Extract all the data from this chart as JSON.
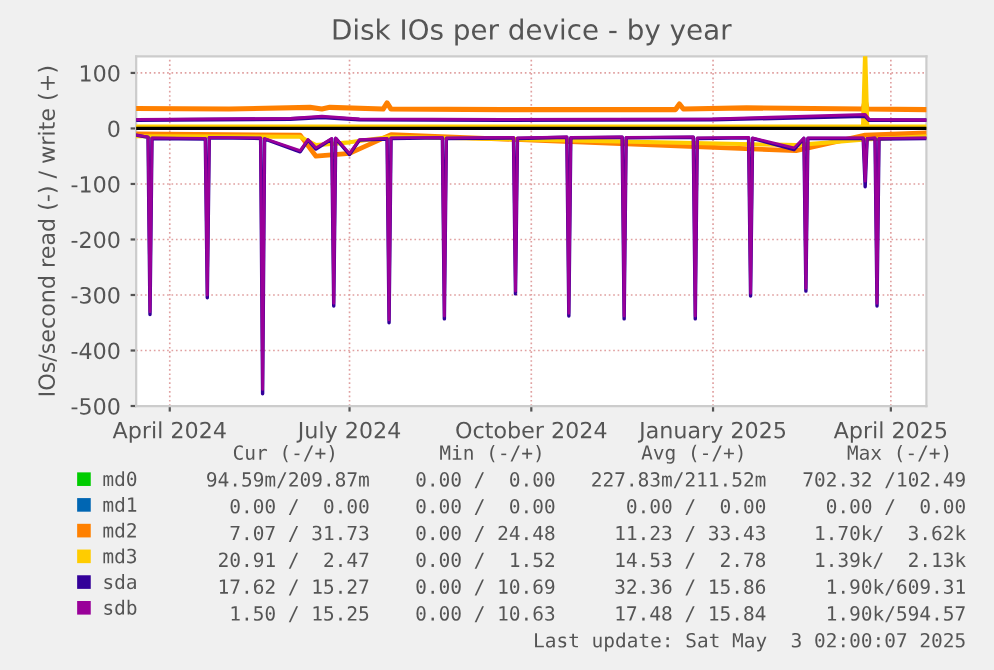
{
  "chart_data": {
    "type": "line",
    "title": "Disk IOs per device - by year",
    "ylabel": "IOs/second read (-) / write (+)",
    "xlim": [
      "2024-03-29",
      "2025-05-03"
    ],
    "xticks": [
      {
        "value": "2024-04-15",
        "label": "April 2024"
      },
      {
        "value": "2024-07-15",
        "label": "July 2024"
      },
      {
        "value": "2024-10-15",
        "label": "October 2024"
      },
      {
        "value": "2025-01-15",
        "label": "January 2025"
      },
      {
        "value": "2025-04-15",
        "label": "April 2025"
      }
    ],
    "ylim": [
      -500,
      130
    ],
    "yticks": [
      -500,
      -400,
      -300,
      -200,
      -100,
      0,
      100
    ],
    "grid": true,
    "legend": "bottom",
    "ref_lines": [
      {
        "axis": "y",
        "value": 0,
        "color": "#000000"
      }
    ],
    "x": [
      "2024-03-29",
      "2024-04-04",
      "2024-04-05",
      "2024-04-06",
      "2024-05-03",
      "2024-05-04",
      "2024-05-05",
      "2024-05-31",
      "2024-06-01",
      "2024-06-02",
      "2024-06-20",
      "2024-06-24",
      "2024-06-28",
      "2024-07-06",
      "2024-07-07",
      "2024-07-08",
      "2024-07-15",
      "2024-07-20",
      "2024-08-03",
      "2024-08-04",
      "2024-08-05",
      "2024-08-31",
      "2024-09-01",
      "2024-09-02",
      "2024-10-06",
      "2024-10-07",
      "2024-10-08",
      "2024-11-02",
      "2024-11-03",
      "2024-11-04",
      "2024-11-30",
      "2024-12-01",
      "2024-12-02",
      "2025-01-05",
      "2025-01-06",
      "2025-01-07",
      "2025-02-02",
      "2025-02-03",
      "2025-02-04",
      "2025-02-25",
      "2025-03-02",
      "2025-03-03",
      "2025-03-04",
      "2025-04-01",
      "2025-04-02",
      "2025-04-03",
      "2025-04-07",
      "2025-04-08",
      "2025-04-09",
      "2025-05-03"
    ],
    "series": [
      {
        "name": "md0",
        "color": "#00cc00",
        "values": [
          null,
          null,
          null,
          null,
          null,
          null,
          null,
          null,
          null,
          null,
          null,
          null,
          null,
          null,
          null,
          null,
          null,
          null,
          null,
          null,
          null,
          null,
          null,
          null,
          null,
          null,
          null,
          null,
          null,
          null,
          null,
          null,
          null,
          null,
          null,
          null,
          null,
          null,
          null,
          null,
          null,
          null,
          null,
          null,
          null,
          null,
          null,
          null,
          null,
          null
        ]
      },
      {
        "name": "md1",
        "color": "#0066b3",
        "values": [
          null,
          null,
          null,
          null,
          null,
          null,
          null,
          null,
          null,
          null,
          null,
          null,
          null,
          null,
          null,
          null,
          null,
          null,
          null,
          null,
          null,
          null,
          null,
          null,
          null,
          null,
          null,
          null,
          null,
          null,
          null,
          null,
          null,
          null,
          null,
          null,
          null,
          null,
          null,
          null,
          null,
          null,
          null,
          null,
          null,
          null,
          null,
          null,
          null,
          null
        ]
      },
      {
        "name": "md2",
        "color": "#ff8000",
        "x": [
          "2024-03-29",
          "2024-05-15",
          "2024-06-25",
          "2024-07-01",
          "2024-07-05",
          "2024-08-01",
          "2024-08-03",
          "2024-08-05",
          "2024-10-01",
          "2024-12-27",
          "2024-12-29",
          "2024-12-31",
          "2025-02-01",
          "2025-04-01",
          "2025-04-02",
          "2025-04-03",
          "2025-05-03"
        ],
        "values": [
          36,
          35,
          38,
          35,
          38,
          35,
          46,
          35,
          34,
          34,
          44,
          35,
          37,
          35,
          50,
          35,
          34
        ]
      },
      {
        "color": "#ff8000",
        "x": [
          "2024-03-29",
          "2024-06-20",
          "2024-06-28",
          "2024-07-15",
          "2024-08-05",
          "2025-02-26",
          "2025-04-02",
          "2025-05-03"
        ],
        "values": [
          -10,
          -12,
          -50,
          -45,
          -11,
          -40,
          -12,
          -8
        ]
      },
      {
        "name": "md3",
        "color": "#ffcc00",
        "x": [
          "2024-03-29",
          "2025-04-01",
          "2025-04-02",
          "2025-04-03",
          "2025-05-03"
        ],
        "values": [
          3,
          3,
          130,
          3,
          3
        ]
      },
      {
        "color": "#ffcc00",
        "x": [
          "2024-03-29",
          "2024-06-20",
          "2024-06-28",
          "2024-07-15",
          "2024-08-05",
          "2025-02-26",
          "2025-04-02",
          "2025-05-03"
        ],
        "values": [
          -14,
          -15,
          -30,
          -25,
          -15,
          -30,
          -20,
          -14
        ]
      },
      {
        "name": "sda",
        "color": "#330099",
        "x": [
          "2024-03-29",
          "2024-06-15",
          "2024-07-01",
          "2024-07-20",
          "2024-10-01",
          "2025-01-15",
          "2025-04-02",
          "2025-04-04",
          "2025-05-03"
        ],
        "values": [
          15,
          17,
          20,
          16,
          15,
          16,
          22,
          15,
          15
        ]
      },
      {
        "color": "#330099",
        "values": [
          -12,
          -16,
          -335,
          -18,
          -19,
          -305,
          -17,
          -18,
          -478,
          -19,
          -42,
          -21,
          -37,
          -19,
          -320,
          -18,
          -47,
          -21,
          -19,
          -350,
          -18,
          -17,
          -343,
          -18,
          -17,
          -298,
          -18,
          -16,
          -338,
          -17,
          -16,
          -343,
          -17,
          -16,
          -343,
          -18,
          -17,
          -302,
          -18,
          -38,
          -18,
          -293,
          -18,
          -18,
          -105,
          -19,
          -18,
          -320,
          -19,
          -18
        ]
      },
      {
        "name": "sdb",
        "color": "#990099",
        "x": [
          "2024-03-29",
          "2024-06-15",
          "2024-07-01",
          "2024-07-20",
          "2024-10-01",
          "2025-01-15",
          "2025-04-02",
          "2025-04-04",
          "2025-05-03"
        ],
        "values": [
          16,
          18,
          22,
          17,
          16,
          17,
          25,
          16,
          15
        ]
      },
      {
        "color": "#990099",
        "values": [
          -12,
          -15,
          -330,
          -17,
          -18,
          -300,
          -16,
          -17,
          -470,
          -18,
          -40,
          -20,
          -35,
          -18,
          -315,
          -17,
          -45,
          -20,
          -18,
          -345,
          -17,
          -16,
          -338,
          -17,
          -16,
          -293,
          -17,
          -15,
          -333,
          -16,
          -15,
          -338,
          -16,
          -15,
          -338,
          -17,
          -16,
          -297,
          -17,
          -35,
          -17,
          -288,
          -17,
          -17,
          -95,
          -18,
          -17,
          -315,
          -18,
          -17
        ]
      }
    ],
    "annotations": [
      "Cur (-/+)",
      "Min (-/+)",
      "Avg (-/+)",
      "Max (-/+)",
      "94.59m/209.87m",
      "0.00 /  0.00",
      "227.83m/211.52m",
      "702.32 /102.49",
      "0.00 /  0.00",
      "0.00 /  0.00",
      "0.00 /  0.00",
      "0.00 /  0.00",
      "7.07 / 31.73",
      "0.00 / 24.48",
      "11.23 / 33.43",
      "1.70k/  3.62k",
      "20.91 /  2.47",
      "0.00 /  1.52",
      "14.53 /  2.78",
      "1.39k/  2.13k",
      "17.62 / 15.27",
      "0.00 / 10.69",
      "32.36 / 15.86",
      "1.90k/609.31",
      "1.50 / 15.25",
      "0.00 / 10.63",
      "17.48 / 15.84",
      "1.90k/594.57",
      "Last update: Sat May  3 02:00:07 2025"
    ]
  }
}
